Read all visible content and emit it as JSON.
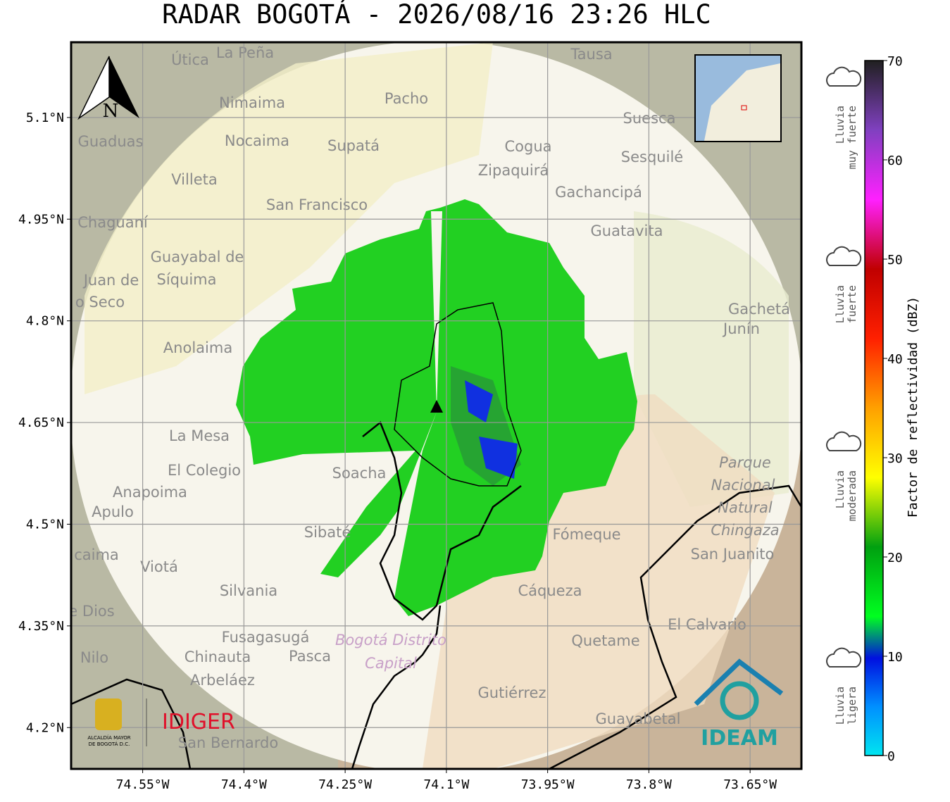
{
  "title": "RADAR BOGOTÁ - 2026/08/16 23:26 HLC",
  "map": {
    "lonlim": [
      -74.656,
      -73.574
    ],
    "latlim": [
      4.139,
      5.211
    ],
    "lon_ticks": [
      {
        "value": -74.55,
        "label": "74.55°W"
      },
      {
        "value": -74.4,
        "label": "74.4°W"
      },
      {
        "value": -74.25,
        "label": "74.25°W"
      },
      {
        "value": -74.1,
        "label": "74.1°W"
      },
      {
        "value": -73.95,
        "label": "73.95°W"
      },
      {
        "value": -73.8,
        "label": "73.8°W"
      },
      {
        "value": -73.65,
        "label": "73.65°W"
      }
    ],
    "lat_ticks": [
      {
        "value": 5.1,
        "label": "5.1°N"
      },
      {
        "value": 4.95,
        "label": "4.95°N"
      },
      {
        "value": 4.8,
        "label": "4.8°N"
      },
      {
        "value": 4.65,
        "label": "4.65°N"
      },
      {
        "value": 4.5,
        "label": "4.5°N"
      },
      {
        "value": 4.35,
        "label": "4.35°N"
      },
      {
        "value": 4.2,
        "label": "4.2°N"
      }
    ],
    "north_label": "N",
    "places": [
      "Útica",
      "La Peña",
      "Tausa",
      "Pacho",
      "Nimaima",
      "Suesca",
      "Guaduas",
      "Nocaima",
      "Supatá",
      "Cogua",
      "Sesquilé",
      "Zipaquirá",
      "Villeta",
      "Gachancipá",
      "San Francisco",
      "Chaguaní",
      "Guatavita",
      "Guayabal de",
      "Síquima",
      "Juan de",
      "o Seco",
      "Gachetá",
      "Junín",
      "Anolaima",
      "La Mesa",
      "El Colegio",
      "Soacha",
      "Anapoima",
      "Apulo",
      "Sibaté",
      "Fómeque",
      "San Juanito",
      "Viotá",
      "Silvania",
      "Cáqueza",
      "Parque",
      "Nacional",
      "Natural",
      "Chingaza",
      "El Calvario",
      "Fusagasugá",
      "Bogotá Distrito",
      "Capital",
      "Quetame",
      "Nilo",
      "Chinauta",
      "Pasca",
      "Arbeláez",
      "Gutiérrez",
      "Guayabetal",
      "San Bernardo",
      "caima",
      "e Dios"
    ]
  },
  "colorbar": {
    "label": "Factor de reflectividad (dBZ)",
    "lim": [
      0,
      70
    ],
    "ticks": [
      0,
      10,
      20,
      30,
      40,
      50,
      60,
      70
    ],
    "categories": [
      [
        "Lluvia",
        "muy fuerte"
      ],
      [
        "Lluvia",
        "fuerte"
      ],
      [
        "Lluvia",
        "moderada"
      ],
      [
        "Lluvia",
        "ligera"
      ]
    ]
  },
  "logos": {
    "alcaldia": [
      "ALCALDÍA MAYOR",
      "DE BOGOTÁ D.C."
    ],
    "idiger": "IDIGER",
    "ideam": "IDEAM"
  }
}
